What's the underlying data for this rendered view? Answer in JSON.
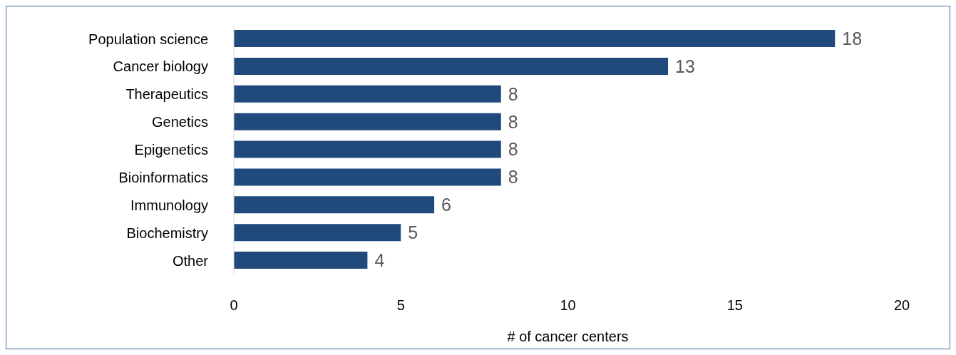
{
  "chart_data": {
    "type": "bar",
    "orientation": "horizontal",
    "xlabel": "# of cancer centers",
    "categories": [
      "Population science",
      "Cancer biology",
      "Therapeutics",
      "Genetics",
      "Epigenetics",
      "Bioinformatics",
      "Immunology",
      "Biochemistry",
      "Other"
    ],
    "values": [
      18,
      13,
      8,
      8,
      8,
      8,
      6,
      5,
      4
    ],
    "color": "#214a7c",
    "xlim": [
      0,
      20
    ],
    "xticks": [
      0,
      5,
      10,
      15,
      20
    ],
    "grid": false,
    "data_labels": true
  }
}
